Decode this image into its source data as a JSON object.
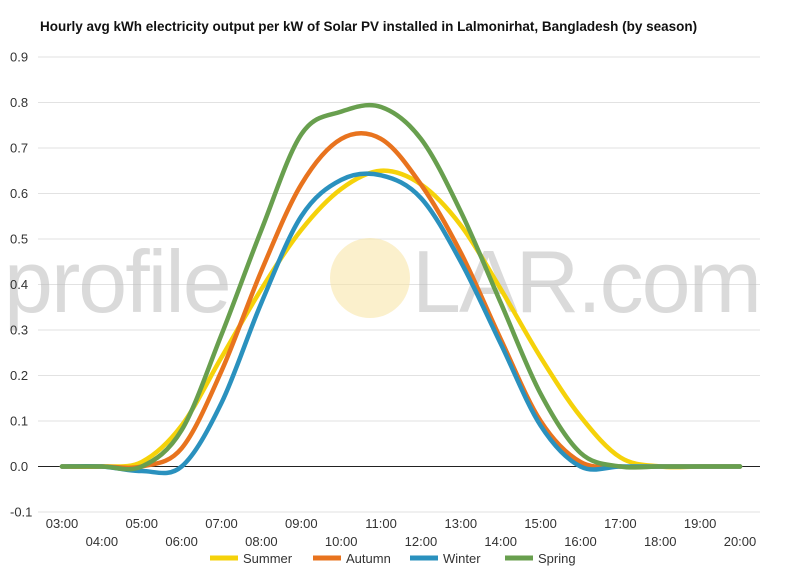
{
  "chart_data": {
    "type": "line",
    "title": "Hourly avg kWh electricity output per kW of Solar PV installed in Lalmonirhat, Bangladesh (by season)",
    "xlabel": "",
    "ylabel": "",
    "categories": [
      "03:00",
      "04:00",
      "05:00",
      "06:00",
      "07:00",
      "08:00",
      "09:00",
      "10:00",
      "11:00",
      "12:00",
      "13:00",
      "14:00",
      "15:00",
      "16:00",
      "17:00",
      "18:00",
      "19:00",
      "20:00"
    ],
    "ylim": [
      -0.1,
      0.9
    ],
    "yticks": [
      "-0.1",
      "0.0",
      "0.1",
      "0.2",
      "0.3",
      "0.4",
      "0.5",
      "0.6",
      "0.7",
      "0.8",
      "0.9"
    ],
    "grid": true,
    "legend_position": "bottom",
    "series": [
      {
        "name": "Summer",
        "color": "#f5d20a",
        "values": [
          0.0,
          0.0,
          0.01,
          0.09,
          0.24,
          0.39,
          0.52,
          0.61,
          0.65,
          0.62,
          0.53,
          0.39,
          0.24,
          0.11,
          0.02,
          0.0,
          0.0,
          0.0
        ]
      },
      {
        "name": "Autumn",
        "color": "#e8731e",
        "values": [
          0.0,
          0.0,
          0.0,
          0.04,
          0.21,
          0.43,
          0.62,
          0.72,
          0.72,
          0.62,
          0.47,
          0.28,
          0.1,
          0.01,
          0.0,
          0.0,
          0.0,
          0.0
        ]
      },
      {
        "name": "Winter",
        "color": "#2a91be",
        "values": [
          0.0,
          0.0,
          -0.01,
          0.0,
          0.14,
          0.36,
          0.55,
          0.63,
          0.64,
          0.59,
          0.45,
          0.27,
          0.09,
          0.0,
          0.0,
          0.0,
          0.0,
          0.0
        ]
      },
      {
        "name": "Spring",
        "color": "#689f4e",
        "values": [
          0.0,
          0.0,
          0.0,
          0.08,
          0.29,
          0.52,
          0.73,
          0.78,
          0.79,
          0.72,
          0.56,
          0.36,
          0.16,
          0.03,
          0.0,
          0.0,
          0.0,
          0.0
        ]
      }
    ]
  },
  "watermark": {
    "text_left": "profile",
    "text_right": "LAR.com"
  }
}
